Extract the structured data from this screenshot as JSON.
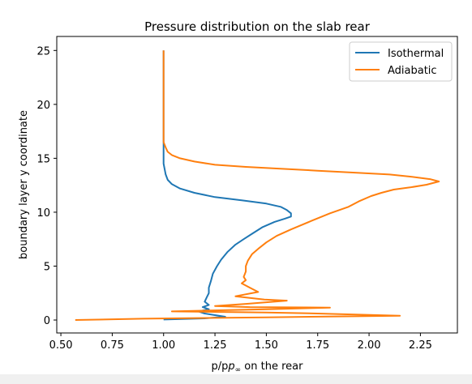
{
  "chart_data": {
    "type": "line",
    "title": "Pressure distribution on the slab rear",
    "xlabel_prefix": "p/p",
    "xlabel_sub": "∞",
    "xlabel_suffix": " on the rear",
    "ylabel": "boundary layer y coordinate",
    "xlim": [
      0.48,
      2.43
    ],
    "ylim": [
      -1.2,
      26.3
    ],
    "xticks": [
      0.5,
      0.75,
      1.0,
      1.25,
      1.5,
      1.75,
      2.0,
      2.25
    ],
    "xtick_labels": [
      "0.50",
      "0.75",
      "1.00",
      "1.25",
      "1.50",
      "1.75",
      "2.00",
      "2.25"
    ],
    "yticks": [
      0,
      5,
      10,
      15,
      20,
      25
    ],
    "ytick_labels": [
      "0",
      "5",
      "10",
      "15",
      "20",
      "25"
    ],
    "grid": false,
    "legend_position": "top-right",
    "series": [
      {
        "name": "Isothermal",
        "color": "#1f77b4",
        "points": [
          [
            1.0,
            25.0
          ],
          [
            1.0,
            20.0
          ],
          [
            1.0,
            16.0
          ],
          [
            1.0,
            14.5
          ],
          [
            1.01,
            13.5
          ],
          [
            1.02,
            13.0
          ],
          [
            1.04,
            12.6
          ],
          [
            1.08,
            12.2
          ],
          [
            1.15,
            11.8
          ],
          [
            1.25,
            11.4
          ],
          [
            1.38,
            11.1
          ],
          [
            1.5,
            10.8
          ],
          [
            1.57,
            10.5
          ],
          [
            1.6,
            10.2
          ],
          [
            1.62,
            9.9
          ],
          [
            1.62,
            9.6
          ],
          [
            1.59,
            9.4
          ],
          [
            1.54,
            9.1
          ],
          [
            1.48,
            8.6
          ],
          [
            1.43,
            8.0
          ],
          [
            1.39,
            7.5
          ],
          [
            1.35,
            7.0
          ],
          [
            1.31,
            6.3
          ],
          [
            1.28,
            5.6
          ],
          [
            1.26,
            5.0
          ],
          [
            1.24,
            4.3
          ],
          [
            1.23,
            3.6
          ],
          [
            1.22,
            3.0
          ],
          [
            1.22,
            2.5
          ],
          [
            1.21,
            2.1
          ],
          [
            1.2,
            1.7
          ],
          [
            1.22,
            1.4
          ],
          [
            1.19,
            1.2
          ],
          [
            1.22,
            1.0
          ],
          [
            1.17,
            0.8
          ],
          [
            1.2,
            0.6
          ],
          [
            1.25,
            0.45
          ],
          [
            1.3,
            0.3
          ],
          [
            1.2,
            0.15
          ],
          [
            1.0,
            0.05
          ]
        ]
      },
      {
        "name": "Adiabatic",
        "color": "#ff7f0e",
        "points": [
          [
            1.0,
            25.0
          ],
          [
            1.0,
            20.0
          ],
          [
            1.0,
            16.5
          ],
          [
            1.01,
            16.0
          ],
          [
            1.02,
            15.6
          ],
          [
            1.04,
            15.3
          ],
          [
            1.08,
            15.0
          ],
          [
            1.15,
            14.7
          ],
          [
            1.25,
            14.4
          ],
          [
            1.4,
            14.2
          ],
          [
            1.55,
            14.05
          ],
          [
            1.75,
            13.85
          ],
          [
            1.95,
            13.65
          ],
          [
            2.1,
            13.5
          ],
          [
            2.2,
            13.3
          ],
          [
            2.3,
            13.05
          ],
          [
            2.34,
            12.85
          ],
          [
            2.28,
            12.55
          ],
          [
            2.2,
            12.3
          ],
          [
            2.12,
            12.1
          ],
          [
            2.06,
            11.8
          ],
          [
            2.01,
            11.5
          ],
          [
            1.95,
            11.0
          ],
          [
            1.9,
            10.5
          ],
          [
            1.81,
            9.9
          ],
          [
            1.72,
            9.2
          ],
          [
            1.62,
            8.4
          ],
          [
            1.55,
            7.8
          ],
          [
            1.5,
            7.2
          ],
          [
            1.46,
            6.6
          ],
          [
            1.43,
            6.1
          ],
          [
            1.41,
            5.5
          ],
          [
            1.4,
            5.0
          ],
          [
            1.4,
            4.5
          ],
          [
            1.39,
            4.0
          ],
          [
            1.4,
            3.7
          ],
          [
            1.38,
            3.4
          ],
          [
            1.42,
            3.0
          ],
          [
            1.46,
            2.6
          ],
          [
            1.35,
            2.2
          ],
          [
            1.49,
            1.9
          ],
          [
            1.6,
            1.8
          ],
          [
            1.4,
            1.5
          ],
          [
            1.25,
            1.3
          ],
          [
            1.42,
            1.2
          ],
          [
            1.81,
            1.15
          ],
          [
            1.5,
            1.0
          ],
          [
            1.25,
            0.9
          ],
          [
            1.04,
            0.8
          ],
          [
            1.5,
            0.7
          ],
          [
            1.75,
            0.6
          ],
          [
            2.15,
            0.4
          ],
          [
            1.5,
            0.25
          ],
          [
            0.9,
            0.12
          ],
          [
            0.57,
            0.0
          ]
        ]
      }
    ]
  }
}
